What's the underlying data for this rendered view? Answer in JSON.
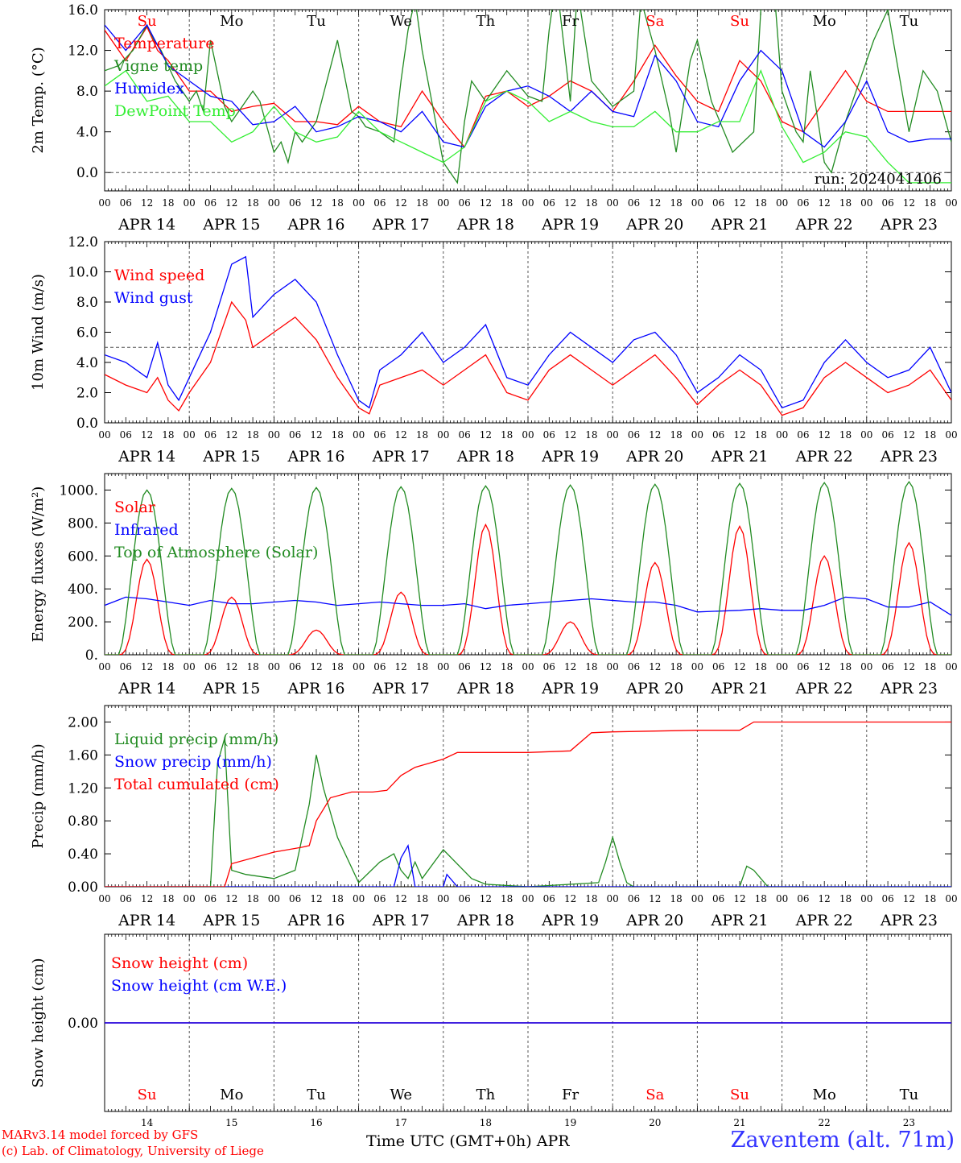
{
  "meta": {
    "model_credit": "MARv3.14 model forced by GFS",
    "lab_credit": "(c) Lab. of Climatology, University of Liege",
    "x_axis_label": "Time UTC (GMT+0h) APR",
    "station": "Zaventem (alt. 71m)",
    "run_label": "run: 2024041406"
  },
  "days": {
    "weekdays": [
      "Su",
      "Mo",
      "Tu",
      "We",
      "Th",
      "Fr",
      "Sa",
      "Su",
      "Mo",
      "Tu"
    ],
    "weekend_flags": [
      true,
      false,
      false,
      false,
      false,
      false,
      true,
      true,
      false,
      false
    ],
    "date_labels": [
      "APR 14",
      "APR 15",
      "APR 16",
      "APR 17",
      "APR 18",
      "APR 19",
      "APR 20",
      "APR 21",
      "APR 22",
      "APR 23"
    ],
    "day_numbers": [
      "14",
      "15",
      "16",
      "17",
      "18",
      "19",
      "20",
      "21",
      "22",
      "23"
    ],
    "hour_ticks": [
      "00",
      "06",
      "12",
      "18"
    ],
    "final_hour": "00"
  },
  "colors": {
    "red": "#ff0000",
    "dark_green": "#228b22",
    "blue": "#0000ff",
    "light_green": "#33ee33",
    "purple": "#800080",
    "weekend": "#ff0000",
    "weekday": "#000000"
  },
  "chart_data": [
    {
      "id": "temperature",
      "type": "line",
      "ylabel": "2m Temp. (°C)",
      "ylim": [
        -1.8,
        16
      ],
      "yticks": [
        0,
        4,
        8,
        12,
        16
      ],
      "ytick_labels": [
        "0.0",
        "4.0",
        "8.0",
        "12.0",
        "16.0"
      ],
      "ref_line": 0,
      "xlim_hours": [
        0,
        240
      ],
      "show_weekdays": true,
      "series": [
        {
          "name": "Temperature",
          "color_key": "red",
          "x": [
            0,
            6,
            12,
            15,
            18,
            24,
            30,
            36,
            42,
            48,
            54,
            60,
            66,
            72,
            78,
            84,
            90,
            96,
            102,
            108,
            114,
            120,
            126,
            132,
            138,
            144,
            150,
            156,
            162,
            168,
            174,
            180,
            186,
            192,
            198,
            204,
            210,
            216,
            222,
            228,
            234,
            240
          ],
          "y": [
            14,
            11,
            14.3,
            12,
            11,
            8,
            8,
            6,
            6.5,
            6.8,
            5,
            5,
            4.7,
            6.5,
            5,
            4.5,
            8,
            5,
            2.5,
            7.5,
            8,
            6.5,
            7.5,
            9,
            8,
            6,
            9,
            12.5,
            9.5,
            7,
            6,
            11,
            9,
            5,
            4,
            7,
            10,
            7,
            6,
            6,
            6,
            6
          ]
        },
        {
          "name": "Vigne temp",
          "color_key": "dark_green",
          "x": [
            0,
            4,
            8,
            12,
            14,
            16,
            20,
            24,
            26,
            28,
            30,
            34,
            36,
            40,
            42,
            44,
            48,
            50,
            52,
            54,
            56,
            58,
            60,
            66,
            70,
            72,
            74,
            78,
            82,
            84,
            86,
            88,
            90,
            96,
            100,
            102,
            104,
            108,
            114,
            120,
            124,
            126,
            128,
            132,
            134,
            138,
            144,
            150,
            152,
            156,
            160,
            162,
            166,
            168,
            172,
            178,
            184,
            186,
            190,
            192,
            196,
            198,
            200,
            204,
            206,
            210,
            214,
            218,
            222,
            228,
            232,
            236,
            240
          ],
          "y": [
            10,
            10.5,
            12,
            14.5,
            13,
            12,
            9,
            7,
            8,
            6,
            13,
            6.5,
            5,
            7,
            8,
            7,
            2,
            3,
            1,
            4,
            3,
            4,
            5,
            13,
            6,
            5.5,
            4.5,
            4,
            3,
            9,
            14,
            17,
            12,
            1,
            -1,
            5,
            9,
            7,
            10,
            7.5,
            7,
            14,
            19,
            7,
            18,
            9,
            6.5,
            8,
            17,
            12,
            6,
            2,
            11,
            13,
            7,
            2,
            4,
            16,
            17,
            8,
            4,
            3,
            10,
            1,
            0,
            5,
            9,
            13,
            16,
            4,
            10,
            8,
            3
          ]
        },
        {
          "name": "Humidex",
          "color_key": "blue",
          "x": [
            0,
            6,
            12,
            18,
            24,
            30,
            36,
            42,
            48,
            54,
            60,
            66,
            72,
            78,
            84,
            90,
            96,
            102,
            108,
            114,
            120,
            126,
            132,
            138,
            144,
            150,
            156,
            162,
            168,
            174,
            180,
            186,
            192,
            198,
            204,
            210,
            216,
            222,
            228,
            234,
            240
          ],
          "y": [
            14.5,
            12,
            14.5,
            10.5,
            9,
            7.5,
            7,
            4.7,
            5,
            6.5,
            4,
            4.5,
            5.5,
            5,
            4,
            6,
            3,
            2.5,
            6.5,
            8,
            8.5,
            7.5,
            6,
            8,
            6,
            5.5,
            11.5,
            9,
            5,
            4.5,
            9,
            12,
            10,
            4,
            2.5,
            5,
            9,
            4,
            3,
            3.3,
            3.3
          ]
        },
        {
          "name": "DewPoint Temp",
          "color_key": "light_green",
          "x": [
            0,
            6,
            12,
            18,
            24,
            30,
            36,
            42,
            48,
            54,
            60,
            66,
            72,
            78,
            84,
            90,
            96,
            102,
            108,
            114,
            120,
            126,
            132,
            138,
            144,
            150,
            156,
            162,
            168,
            174,
            180,
            186,
            192,
            198,
            204,
            210,
            216,
            222,
            228,
            234,
            240
          ],
          "y": [
            8.5,
            10,
            7,
            7.5,
            5,
            5,
            3,
            4,
            6.5,
            4,
            3,
            3.5,
            6,
            4,
            3,
            2,
            1,
            2.5,
            7,
            8,
            7,
            5,
            6,
            5,
            4.5,
            4.5,
            6,
            4,
            4,
            5,
            5,
            10,
            4.5,
            1,
            2,
            4,
            3.5,
            1,
            -1,
            -1,
            -1
          ]
        }
      ]
    },
    {
      "id": "wind",
      "type": "line",
      "ylabel": "10m Wind (m/s)",
      "ylim": [
        0,
        12
      ],
      "yticks": [
        0,
        2,
        4,
        6,
        8,
        10,
        12
      ],
      "ytick_labels": [
        "0.0",
        "2.0",
        "4.0",
        "6.0",
        "8.0",
        "10.0",
        "12.0"
      ],
      "ref_line": 5,
      "xlim_hours": [
        0,
        240
      ],
      "series": [
        {
          "name": "Wind speed",
          "color_key": "red",
          "x": [
            0,
            6,
            12,
            15,
            18,
            21,
            24,
            30,
            36,
            40,
            42,
            48,
            54,
            60,
            66,
            72,
            75,
            78,
            84,
            90,
            96,
            102,
            108,
            114,
            120,
            126,
            132,
            138,
            144,
            150,
            156,
            162,
            168,
            174,
            180,
            186,
            192,
            198,
            204,
            210,
            216,
            222,
            228,
            234,
            240
          ],
          "y": [
            3.2,
            2.5,
            2,
            3,
            1.5,
            0.8,
            2,
            4,
            8,
            6.8,
            5,
            6,
            7,
            5.5,
            3,
            1,
            0.6,
            2.5,
            3,
            3.5,
            2.5,
            3.5,
            4.5,
            2,
            1.5,
            3.5,
            4.5,
            3.5,
            2.5,
            3.5,
            4.5,
            3,
            1.2,
            2.5,
            3.5,
            2.5,
            0.5,
            1,
            3,
            4,
            3,
            2,
            2.5,
            3.5,
            1.5
          ]
        },
        {
          "name": "Wind gust",
          "color_key": "blue",
          "x": [
            0,
            6,
            12,
            15,
            18,
            21,
            24,
            30,
            36,
            40,
            42,
            48,
            54,
            60,
            66,
            72,
            75,
            78,
            84,
            90,
            96,
            102,
            108,
            114,
            120,
            126,
            132,
            138,
            144,
            150,
            156,
            162,
            168,
            174,
            180,
            186,
            192,
            198,
            204,
            210,
            216,
            222,
            228,
            234,
            240
          ],
          "y": [
            4.5,
            4,
            3,
            5.3,
            2.5,
            1.5,
            3,
            6,
            10.5,
            11,
            7,
            8.5,
            9.5,
            8,
            4.5,
            1.5,
            1,
            3.5,
            4.5,
            6,
            4,
            5,
            6.5,
            3,
            2.5,
            4.5,
            6,
            5,
            4,
            5.5,
            6,
            4.5,
            2,
            3,
            4.5,
            3.5,
            1,
            1.5,
            4,
            5.5,
            4,
            3,
            3.5,
            5,
            2
          ]
        }
      ]
    },
    {
      "id": "energy",
      "type": "line",
      "ylabel": "Energy fluxes (W/m²)",
      "ylim": [
        0,
        1100
      ],
      "yticks": [
        0,
        200,
        400,
        600,
        800,
        1000
      ],
      "ytick_labels": [
        "0.",
        "200.",
        "400.",
        "600.",
        "800.",
        "1000."
      ],
      "xlim_hours": [
        0,
        240
      ],
      "series": [
        {
          "name": "Solar",
          "color_key": "red",
          "daily_peaks": [
            580,
            350,
            150,
            380,
            790,
            200,
            560,
            780,
            600,
            680
          ]
        },
        {
          "name": "Infrared",
          "color_key": "blue",
          "x": [
            0,
            6,
            12,
            18,
            24,
            30,
            36,
            42,
            48,
            54,
            60,
            66,
            72,
            78,
            84,
            90,
            96,
            102,
            108,
            114,
            120,
            126,
            132,
            138,
            144,
            150,
            156,
            162,
            168,
            174,
            180,
            186,
            192,
            198,
            204,
            210,
            216,
            222,
            228,
            234,
            240
          ],
          "y": [
            300,
            350,
            340,
            320,
            300,
            330,
            310,
            310,
            320,
            330,
            320,
            300,
            310,
            320,
            310,
            300,
            300,
            310,
            280,
            300,
            310,
            320,
            330,
            340,
            330,
            320,
            320,
            300,
            260,
            265,
            270,
            280,
            270,
            270,
            300,
            350,
            340,
            290,
            290,
            320,
            240
          ]
        },
        {
          "name": "Top of Atmosphere (Solar)",
          "color_key": "dark_green",
          "daily_peaks": [
            1000,
            1010,
            1015,
            1020,
            1025,
            1030,
            1035,
            1040,
            1045,
            1050
          ]
        }
      ]
    },
    {
      "id": "precip",
      "type": "line",
      "ylabel": "Precip (mm/h)",
      "ylim": [
        0,
        2.2
      ],
      "yticks": [
        0,
        0.4,
        0.8,
        1.2,
        1.6,
        2.0
      ],
      "ytick_labels": [
        "0.00",
        "0.40",
        "0.80",
        "1.20",
        "1.60",
        "2.00"
      ],
      "xlim_hours": [
        0,
        240
      ],
      "series": [
        {
          "name": "Liquid precip (mm/h)",
          "color_key": "dark_green",
          "x": [
            0,
            30,
            32,
            34,
            36,
            40,
            48,
            54,
            58,
            60,
            62,
            66,
            72,
            78,
            82,
            84,
            86,
            88,
            90,
            96,
            104,
            108,
            120,
            140,
            142,
            144,
            146,
            148,
            150,
            180,
            182,
            184,
            186,
            188,
            240
          ],
          "y": [
            0,
            0,
            1.5,
            1.8,
            0.2,
            0.15,
            0.1,
            0.2,
            1.0,
            1.6,
            1.2,
            0.6,
            0.05,
            0.3,
            0.4,
            0.2,
            0.1,
            0.3,
            0.1,
            0.45,
            0.1,
            0.03,
            0,
            0.05,
            0.3,
            0.6,
            0.3,
            0.05,
            0,
            0,
            0.25,
            0.2,
            0.1,
            0,
            0
          ]
        },
        {
          "name": "Snow precip (mm/h)",
          "color_key": "blue",
          "x": [
            0,
            82,
            84,
            86,
            88,
            96,
            97,
            100,
            240
          ],
          "y": [
            0,
            0,
            0.35,
            0.5,
            0,
            0,
            0.15,
            0,
            0
          ]
        },
        {
          "name": "Total cumulated (cm)",
          "color_key": "red",
          "x": [
            0,
            34,
            36,
            48,
            56,
            58,
            60,
            64,
            70,
            76,
            80,
            84,
            88,
            92,
            96,
            100,
            104,
            120,
            132,
            138,
            144,
            168,
            180,
            184,
            240
          ],
          "y": [
            0,
            0,
            0.28,
            0.42,
            0.48,
            0.5,
            0.8,
            1.08,
            1.15,
            1.15,
            1.17,
            1.35,
            1.45,
            1.5,
            1.55,
            1.63,
            1.63,
            1.63,
            1.65,
            1.87,
            1.88,
            1.9,
            1.9,
            2.0,
            2.0
          ]
        }
      ]
    },
    {
      "id": "snow",
      "type": "line",
      "ylabel": "Snow height (cm)",
      "ylim": [
        -1,
        1
      ],
      "yticks": [
        0
      ],
      "ytick_labels": [
        "0.00"
      ],
      "xlim_hours": [
        0,
        240
      ],
      "show_bottom_weekdays": true,
      "series": [
        {
          "name": "Snow height (cm)",
          "color_key": "red",
          "x": [
            0,
            240
          ],
          "y": [
            0,
            0
          ]
        },
        {
          "name": "Snow height (cm W.E.)",
          "color_key": "blue",
          "x": [
            0,
            240
          ],
          "y": [
            0,
            0
          ]
        }
      ]
    }
  ]
}
